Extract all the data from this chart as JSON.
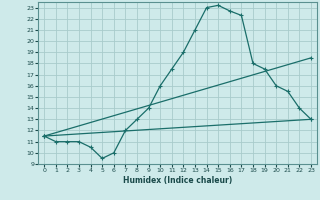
{
  "xlabel": "Humidex (Indice chaleur)",
  "ylabel": "",
  "bg_color": "#ceeaea",
  "grid_color": "#a8cccc",
  "line_color": "#1a6e6a",
  "xlim": [
    -0.5,
    23.5
  ],
  "ylim": [
    9,
    23.5
  ],
  "xticks": [
    0,
    1,
    2,
    3,
    4,
    5,
    6,
    7,
    8,
    9,
    10,
    11,
    12,
    13,
    14,
    15,
    16,
    17,
    18,
    19,
    20,
    21,
    22,
    23
  ],
  "yticks": [
    9,
    10,
    11,
    12,
    13,
    14,
    15,
    16,
    17,
    18,
    19,
    20,
    21,
    22,
    23
  ],
  "series1_x": [
    0,
    1,
    2,
    3,
    4,
    5,
    6,
    7,
    8,
    9,
    10,
    11,
    12,
    13,
    14,
    15,
    16,
    17,
    18,
    19,
    20,
    21,
    22,
    23
  ],
  "series1_y": [
    11.5,
    11.0,
    11.0,
    11.0,
    10.5,
    9.5,
    10.0,
    12.0,
    13.0,
    14.0,
    16.0,
    17.5,
    19.0,
    21.0,
    23.0,
    23.2,
    22.7,
    22.3,
    18.0,
    17.5,
    16.0,
    15.5,
    14.0,
    13.0
  ],
  "series2_x": [
    0,
    23
  ],
  "series2_y": [
    11.5,
    13.0
  ],
  "series3_x": [
    0,
    23
  ],
  "series3_y": [
    11.5,
    18.5
  ],
  "marker": "+"
}
